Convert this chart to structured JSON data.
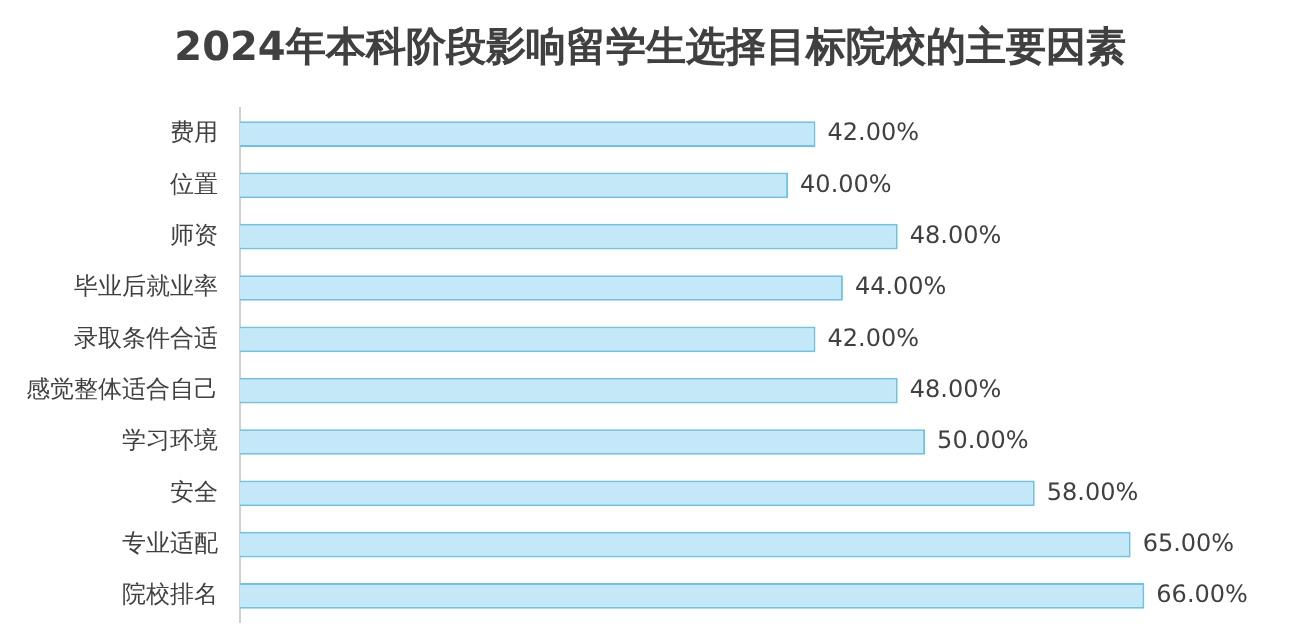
{
  "chart_data": {
    "type": "bar",
    "orientation": "horizontal",
    "title": "2024年本科阶段影响留学生选择目标院校的主要因素",
    "categories": [
      "费用",
      "位置",
      "师资",
      "毕业后就业率",
      "录取条件合适",
      "感觉整体适合自己",
      "学习环境",
      "安全",
      "专业适配",
      "院校排名"
    ],
    "values": [
      42,
      40,
      48,
      44,
      42,
      48,
      50,
      58,
      65,
      66
    ],
    "value_labels": [
      "42.00%",
      "40.00%",
      "48.00%",
      "44.00%",
      "42.00%",
      "48.00%",
      "50.00%",
      "58.00%",
      "65.00%",
      "66.00%"
    ],
    "color": "#c4e8f7",
    "legend": false
  }
}
